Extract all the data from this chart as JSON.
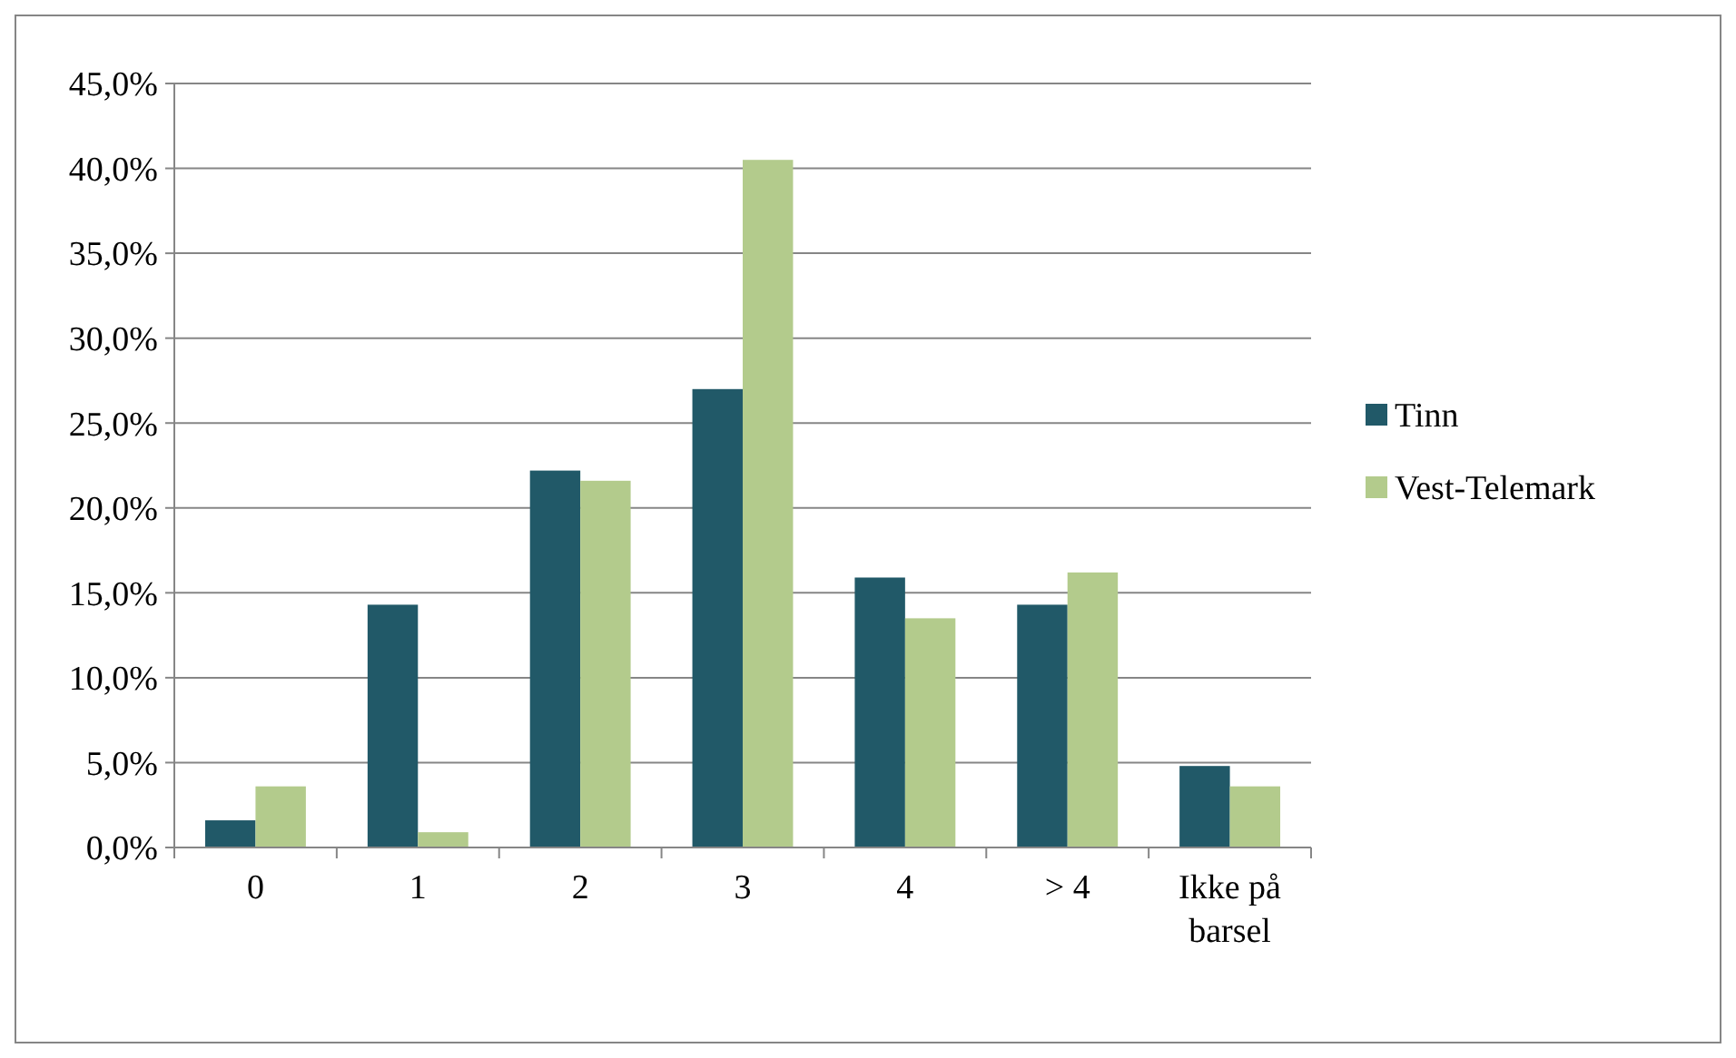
{
  "chart_data": {
    "type": "bar",
    "categories": [
      "0",
      "1",
      "2",
      "3",
      "4",
      "> 4",
      "Ikke på barsel"
    ],
    "series": [
      {
        "name": "Tinn",
        "color": "#215968",
        "values": [
          1.6,
          14.3,
          22.2,
          27.0,
          15.9,
          14.3,
          4.8
        ]
      },
      {
        "name": "Vest-Telemark",
        "color": "#b3cb8c",
        "values": [
          3.6,
          0.9,
          21.6,
          40.5,
          13.5,
          16.2,
          3.6
        ]
      }
    ],
    "ylim": [
      0,
      45
    ],
    "yticks": [
      {
        "value": 0,
        "label": "0,0%"
      },
      {
        "value": 5,
        "label": "5,0%"
      },
      {
        "value": 10,
        "label": "10,0%"
      },
      {
        "value": 15,
        "label": "15,0%"
      },
      {
        "value": 20,
        "label": "20,0%"
      },
      {
        "value": 25,
        "label": "25,0%"
      },
      {
        "value": 30,
        "label": "30,0%"
      },
      {
        "value": 35,
        "label": "35,0%"
      },
      {
        "value": 40,
        "label": "40,0%"
      },
      {
        "value": 45,
        "label": "45,0%"
      }
    ],
    "grid": "y",
    "legend": "right"
  }
}
